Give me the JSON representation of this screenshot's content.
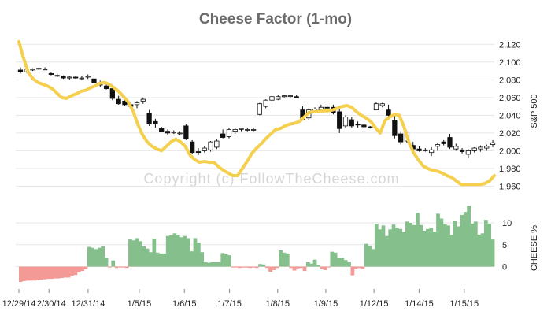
{
  "chart_data": [
    {
      "type": "candlestick",
      "title": "Cheese Factor (1-mo)",
      "ylabel": "S&P 500",
      "ylim": [
        1948,
        2130
      ],
      "y_ticks": [
        1960,
        1980,
        2000,
        2020,
        2040,
        2060,
        2080,
        2100,
        2120
      ],
      "y_tick_labels": [
        "1,960",
        "1,980",
        "2,000",
        "2,020",
        "2,040",
        "2,060",
        "2,080",
        "2,100",
        "2,120"
      ],
      "x_start": "12/29/14",
      "x_end": "1/16/15",
      "date_labels": [
        "12/29/14",
        "12/30/14",
        "12/31/14",
        "1/5/15",
        "1/6/15",
        "1/7/15",
        "1/8/15",
        "1/9/15",
        "1/12/15",
        "1/14/15",
        "1/15/15"
      ],
      "date_label_positions": [
        0,
        0.5,
        1.15,
        2,
        2.75,
        3.5,
        4.3,
        5.1,
        5.9,
        6.65,
        7.4
      ],
      "candles": [
        [
          2091,
          2094,
          2087,
          2089
        ],
        [
          2089,
          2093,
          2088,
          2092
        ],
        [
          2091,
          2093,
          2090,
          2092
        ],
        [
          2092,
          2093,
          2091,
          2093
        ],
        [
          2092,
          2094,
          2091,
          2092
        ],
        [
          2087,
          2089,
          2085,
          2086
        ],
        [
          2085,
          2087,
          2083,
          2084
        ],
        [
          2084,
          2085,
          2081,
          2082
        ],
        [
          2082,
          2084,
          2080,
          2083
        ],
        [
          2083,
          2084,
          2081,
          2082
        ],
        [
          2082,
          2084,
          2080,
          2082
        ],
        [
          2083,
          2086,
          2081,
          2084
        ],
        [
          2081,
          2085,
          2076,
          2077
        ],
        [
          2076,
          2079,
          2072,
          2074
        ],
        [
          2073,
          2076,
          2069,
          2070
        ],
        [
          2070,
          2071,
          2057,
          2059
        ],
        [
          2058,
          2062,
          2052,
          2053
        ],
        [
          2056,
          2059,
          2051,
          2052
        ],
        [
          2052,
          2055,
          2049,
          2050
        ],
        [
          2052,
          2056,
          2048,
          2054
        ],
        [
          2056,
          2060,
          2053,
          2058
        ],
        [
          2042,
          2046,
          2028,
          2030
        ],
        [
          2033,
          2036,
          2026,
          2030
        ],
        [
          2025,
          2027,
          2021,
          2022
        ],
        [
          2022,
          2024,
          2018,
          2020
        ],
        [
          2021,
          2023,
          2019,
          2021
        ],
        [
          2020,
          2022,
          2018,
          2020
        ],
        [
          2028,
          2030,
          2012,
          2014
        ],
        [
          2010,
          2012,
          1996,
          1998
        ],
        [
          1999,
          2003,
          1995,
          1998
        ],
        [
          2000,
          2005,
          1998,
          2003
        ],
        [
          2001,
          2011,
          1999,
          2010
        ],
        [
          2004,
          2013,
          2002,
          2011
        ],
        [
          2019,
          2024,
          2014,
          2015
        ],
        [
          2016,
          2026,
          2014,
          2024
        ],
        [
          2022,
          2026,
          2019,
          2024
        ],
        [
          2024,
          2026,
          2022,
          2025
        ],
        [
          2024,
          2026,
          2022,
          2024
        ],
        [
          2024,
          2026,
          2022,
          2024
        ],
        [
          2041,
          2054,
          2040,
          2053
        ],
        [
          2050,
          2058,
          2048,
          2057
        ],
        [
          2057,
          2062,
          2055,
          2061
        ],
        [
          2058,
          2063,
          2057,
          2061
        ],
        [
          2061,
          2063,
          2060,
          2062
        ],
        [
          2062,
          2063,
          2060,
          2062
        ],
        [
          2061,
          2063,
          2059,
          2060
        ],
        [
          2046,
          2050,
          2034,
          2035
        ],
        [
          2037,
          2048,
          2035,
          2046
        ],
        [
          2045,
          2049,
          2043,
          2047
        ],
        [
          2046,
          2052,
          2044,
          2049
        ],
        [
          2049,
          2051,
          2045,
          2048
        ],
        [
          2049,
          2052,
          2041,
          2043
        ],
        [
          2044,
          2047,
          2020,
          2025
        ],
        [
          2028,
          2040,
          2026,
          2038
        ],
        [
          2035,
          2038,
          2026,
          2028
        ],
        [
          2030,
          2033,
          2026,
          2029
        ],
        [
          2029,
          2030,
          2026,
          2027
        ],
        [
          2027,
          2028,
          2025,
          2026
        ],
        [
          2046,
          2055,
          2046,
          2053
        ],
        [
          2051,
          2054,
          2049,
          2053
        ],
        [
          2046,
          2052,
          2037,
          2040
        ],
        [
          2034,
          2039,
          2014,
          2017
        ],
        [
          2019,
          2022,
          2007,
          2010
        ],
        [
          2011,
          2022,
          2009,
          2021
        ],
        [
          2006,
          2010,
          2000,
          2002
        ],
        [
          2002,
          2005,
          1999,
          2000
        ],
        [
          2001,
          2003,
          1999,
          2000
        ],
        [
          1998,
          2004,
          1994,
          2001
        ],
        [
          2005,
          2009,
          2000,
          2007
        ],
        [
          2010,
          2012,
          2006,
          2008
        ],
        [
          2015,
          2019,
          2002,
          2004
        ],
        [
          2002,
          2008,
          2000,
          2005
        ],
        [
          2001,
          2003,
          1997,
          1999
        ],
        [
          1996,
          2002,
          1992,
          2000
        ],
        [
          2000,
          2004,
          1998,
          2003
        ],
        [
          2002,
          2006,
          1999,
          2004
        ],
        [
          2003,
          2007,
          2000,
          2005
        ],
        [
          2007,
          2012,
          2004,
          2009
        ]
      ],
      "fair_value_line": {
        "color": "#f5d04f",
        "values": [
          2123,
          2104,
          2088,
          2081,
          2077,
          2075,
          2073,
          2070,
          2065,
          2060,
          2059,
          2062,
          2064,
          2067,
          2068,
          2071,
          2073,
          2076,
          2077,
          2075,
          2071,
          2067,
          2061,
          2055,
          2045,
          2030,
          2018,
          2010,
          2005,
          2002,
          2000,
          2005,
          2010,
          2013,
          2010,
          2005,
          1995,
          1990,
          1987,
          1988,
          1987,
          1987,
          1982,
          1978,
          1975,
          1972,
          1972,
          1980,
          1988,
          1997,
          2003,
          2008,
          2014,
          2019,
          2024,
          2025,
          2028,
          2030,
          2031,
          2033,
          2038,
          2043,
          2044,
          2044,
          2045,
          2045,
          2046,
          2048,
          2050,
          2051,
          2049,
          2044,
          2040,
          2037,
          2033,
          2026,
          2020,
          2034,
          2038,
          2041,
          2040,
          2027,
          2010,
          1998,
          1990,
          1983,
          1980,
          1978,
          1977,
          1975,
          1972,
          1970,
          1966,
          1962,
          1962,
          1962,
          1962,
          1962,
          1963,
          1966,
          1972
        ]
      }
    },
    {
      "type": "bar",
      "ylabel": "CHEESE %",
      "ylim": [
        -3.5,
        14.5
      ],
      "y_ticks": [
        0,
        5,
        10
      ],
      "y_tick_labels": [
        "0",
        "5",
        "10"
      ],
      "positive_color": "#85c08c",
      "negative_color": "#f39a96",
      "values": [
        -3.5,
        -3.3,
        -3.2,
        -3.2,
        -3.2,
        -3.1,
        -3.0,
        -2.9,
        -2.8,
        -2.8,
        -2.7,
        -2.7,
        -2.6,
        -2.5,
        -2.5,
        -2.1,
        -1.9,
        -1.3,
        -1.0,
        -0.6,
        4.5,
        4.3,
        4.0,
        4.3,
        4.6,
        2.0,
        -0.2,
        1.4,
        -0.3,
        -0.2,
        -0.2,
        -0.3,
        6.2,
        6.0,
        6.5,
        5.8,
        4.6,
        4.1,
        3.3,
        6.4,
        3.2,
        3.0,
        3.0,
        7.0,
        7.2,
        7.6,
        7.3,
        6.7,
        7.0,
        6.5,
        3.5,
        6.5,
        5.5,
        3.3,
        1.0,
        0.9,
        1.0,
        1.0,
        1.0,
        3.1,
        2.8,
        2.6,
        -0.2,
        -0.2,
        -0.3,
        -0.2,
        -0.2,
        -0.3,
        -0.2,
        -0.3,
        0.6,
        0.5,
        -0.3,
        -1.2,
        -0.8,
        -0.3,
        3.7,
        3.2,
        3.0,
        -0.3,
        -0.9,
        -0.4,
        -0.3,
        -1.0,
        1.0,
        0.7,
        1.6,
        0.4,
        -0.5,
        -0.8,
        -0.2,
        3.4,
        3.2,
        2.0,
        2.0,
        1.5,
        1.0,
        -2.0,
        -0.5,
        -0.3,
        -0.5,
        5.2,
        4.8,
        4.0,
        9.8,
        8.5,
        9.4,
        7.0,
        8.5,
        9.6,
        8.9,
        8.6,
        7.9,
        10.3,
        10.0,
        9.5,
        12.3,
        9.5,
        8.2,
        8.6,
        8.9,
        8.0,
        12.1,
        11.0,
        9.7,
        9.4,
        7.3,
        10.5,
        9.2,
        11.8,
        12.5,
        13.9,
        9.8,
        10.3,
        7.3,
        7.6,
        10.7,
        9.8,
        6.2
      ]
    }
  ],
  "watermark": "Copyright (c) FollowTheCheese.com"
}
